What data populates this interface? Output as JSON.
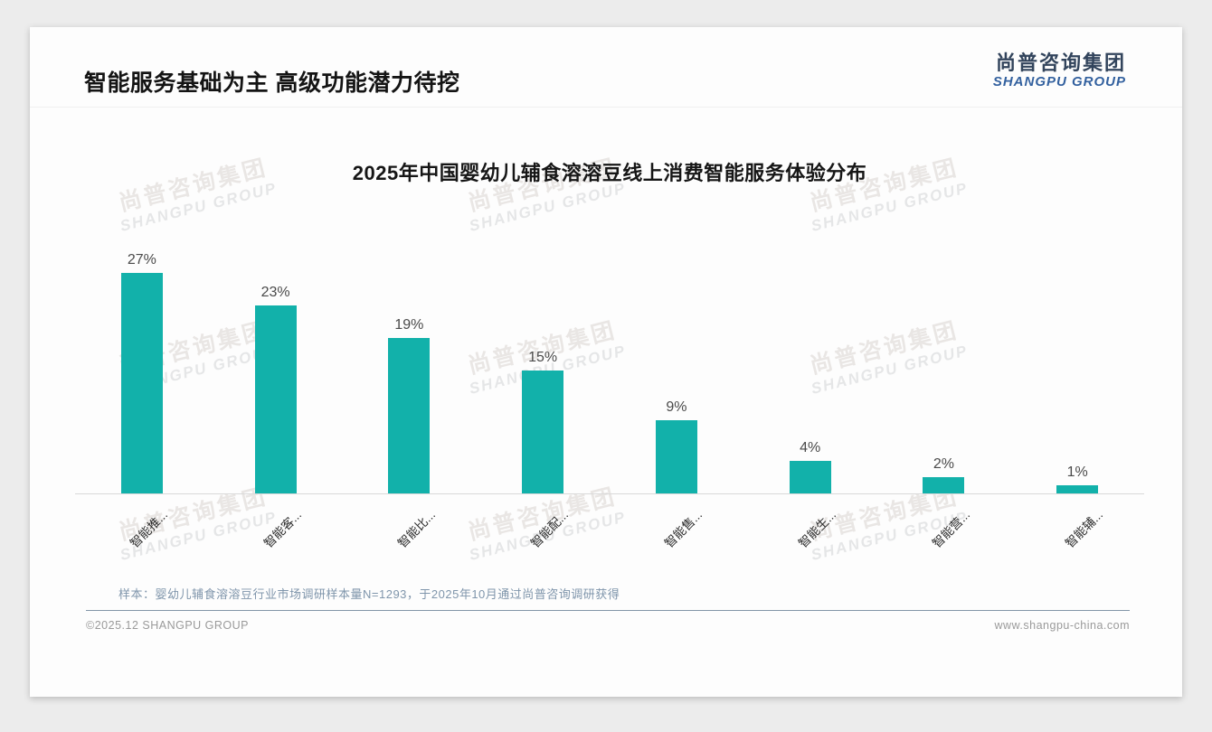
{
  "page": {
    "title": "智能服务基础为主 高级功能潜力待挖",
    "logo": {
      "cn": "尚普咨询集团",
      "en": "SHANGPU GROUP"
    },
    "watermark": {
      "cn": "尚普咨询集团",
      "en": "SHANGPU GROUP"
    },
    "footnote": "样本：婴幼儿辅食溶溶豆行业市场调研样本量N=1293，于2025年10月通过尚普咨询调研获得",
    "footer_left": "©2025.12 SHANGPU GROUP",
    "footer_right": "www.shangpu-china.com"
  },
  "chart_data": {
    "type": "bar",
    "title": "2025年中国婴幼儿辅食溶溶豆线上消费智能服务体验分布",
    "categories": [
      "智能推...",
      "智能客...",
      "智能比...",
      "智能配...",
      "智能售...",
      "智能生...",
      "智能营...",
      "智能辅..."
    ],
    "values": [
      27,
      23,
      19,
      15,
      9,
      4,
      2,
      1
    ],
    "labels": [
      "27%",
      "23%",
      "19%",
      "15%",
      "9%",
      "4%",
      "2%",
      "1%"
    ],
    "unit": "%",
    "bar_color": "#12b1aa",
    "ylim": [
      0,
      30
    ],
    "grid": false,
    "legend": false,
    "value_labels_position": "above-bar",
    "category_labels_rotation_deg": -45
  }
}
